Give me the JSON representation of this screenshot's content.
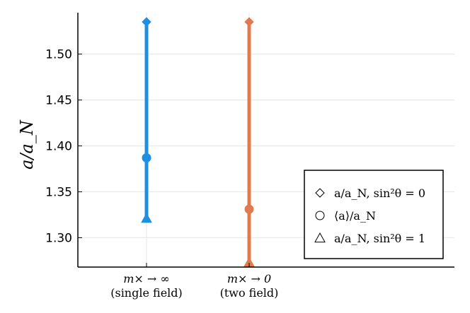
{
  "chart_data": {
    "type": "scatter",
    "ylabel": "a/a_N",
    "ylim": [
      1.268,
      1.545
    ],
    "yticks": [
      1.3,
      1.35,
      1.4,
      1.45,
      1.5
    ],
    "ytick_labels": [
      "1.30",
      "1.35",
      "1.40",
      "1.45",
      "1.50"
    ],
    "grid": true,
    "legend_position": "bottom-right",
    "categories": [
      {
        "line1": "m× → ∞",
        "line2": "(single field)"
      },
      {
        "line1": "m× → 0",
        "line2": "(two field)"
      }
    ],
    "colors": [
      "#1f8fe0",
      "#e07a4f"
    ],
    "series": [
      {
        "marker": "diamond",
        "legend": "a/a_N, sin²θ = 0",
        "values": [
          1.535,
          1.535
        ]
      },
      {
        "marker": "circle",
        "legend": "⟨a⟩/a_N",
        "values": [
          1.387,
          1.331
        ]
      },
      {
        "marker": "triangle",
        "legend": "a/a_N, sin²θ = 1",
        "values": [
          1.321,
          1.273
        ]
      }
    ]
  }
}
